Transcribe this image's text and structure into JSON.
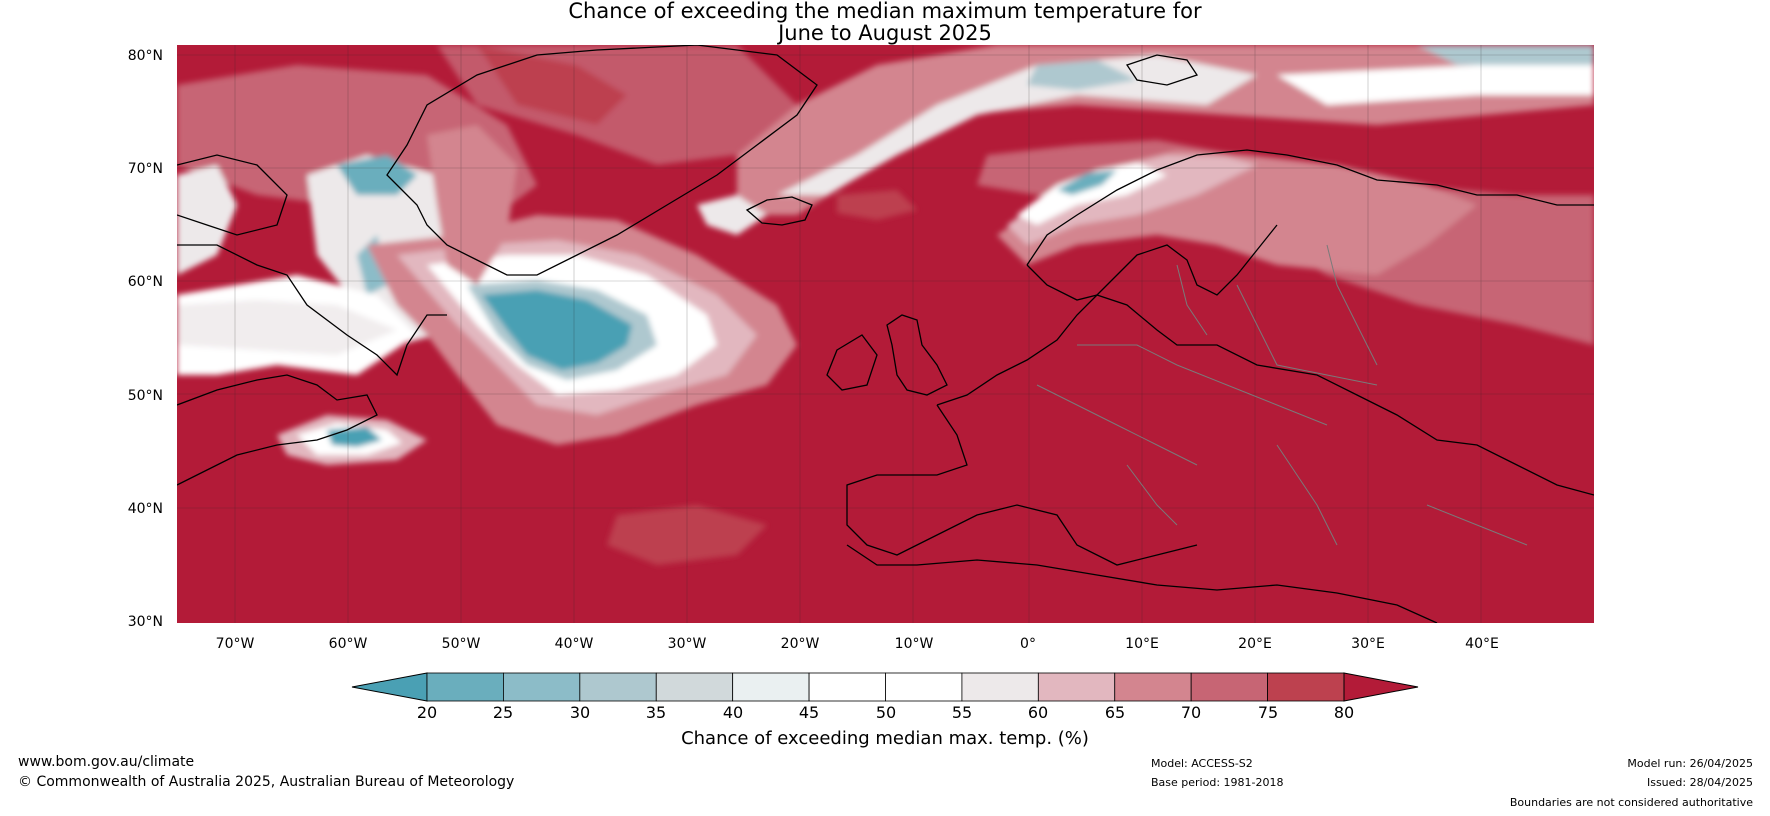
{
  "title": {
    "line1": "Chance of exceeding the median maximum temperature for",
    "line2": "June to August 2025"
  },
  "map": {
    "latitude_labels": [
      "80°N",
      "70°N",
      "60°N",
      "50°N",
      "40°N",
      "30°N"
    ],
    "longitude_labels": [
      "70°W",
      "60°W",
      "50°W",
      "40°W",
      "30°W",
      "20°W",
      "10°W",
      "0°",
      "10°E",
      "20°E",
      "30°E",
      "40°E"
    ],
    "colors": {
      "ocean_high": "#b31b38",
      "land_high": "#b31b38",
      "coastline": "#000000",
      "borders": "#7a7a7a"
    }
  },
  "colorbar": {
    "ticks": [
      "20",
      "25",
      "30",
      "35",
      "40",
      "45",
      "50",
      "55",
      "60",
      "65",
      "70",
      "75",
      "80"
    ],
    "colors": [
      "#4aa0b4",
      "#6aaebd",
      "#8cbcc8",
      "#aec8cf",
      "#d1d9db",
      "#eaf0f1",
      "#ffffff",
      "#ffffff",
      "#ede9ea",
      "#e2b7bf",
      "#d3858f",
      "#c76574",
      "#bd414f",
      "#b31b38"
    ],
    "label": "Chance of exceeding median max. temp. (%)"
  },
  "footer": {
    "website": "www.bom.gov.au/climate",
    "copyright": "© Commonwealth of Australia 2025, Australian Bureau of Meteorology",
    "model": "Model: ACCESS-S2",
    "base_period": "Base period: 1981-2018",
    "model_run": "Model run: 26/04/2025",
    "issued": "Issued: 28/04/2025",
    "disclaimer": "Boundaries are not considered authoritative"
  }
}
